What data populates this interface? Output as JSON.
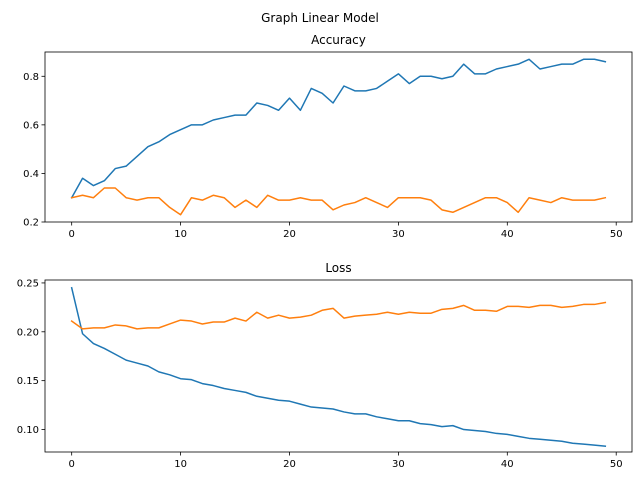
{
  "figure": {
    "suptitle": "Graph Linear Model"
  },
  "colors": {
    "series_0": "#1f77b4",
    "series_1": "#ff7f0e"
  },
  "chart_data": [
    {
      "type": "line",
      "title": "Accuracy",
      "xlabel": "",
      "ylabel": "",
      "xlim": [
        -2.45,
        51.45
      ],
      "ylim": [
        0.2,
        0.9
      ],
      "xticks": [
        0,
        10,
        20,
        30,
        40,
        50
      ],
      "yticks": [
        0.2,
        0.4,
        0.6,
        0.8
      ],
      "ytick_labels": [
        "0.2",
        "0.4",
        "0.6",
        "0.8"
      ],
      "grid": false,
      "x": [
        0,
        1,
        2,
        3,
        4,
        5,
        6,
        7,
        8,
        9,
        10,
        11,
        12,
        13,
        14,
        15,
        16,
        17,
        18,
        19,
        20,
        21,
        22,
        23,
        24,
        25,
        26,
        27,
        28,
        29,
        30,
        31,
        32,
        33,
        34,
        35,
        36,
        37,
        38,
        39,
        40,
        41,
        42,
        43,
        44,
        45,
        46,
        47,
        48,
        49
      ],
      "series": [
        {
          "values": [
            0.3,
            0.38,
            0.35,
            0.37,
            0.42,
            0.43,
            0.47,
            0.51,
            0.53,
            0.56,
            0.58,
            0.6,
            0.6,
            0.62,
            0.63,
            0.64,
            0.64,
            0.69,
            0.68,
            0.66,
            0.71,
            0.66,
            0.75,
            0.73,
            0.69,
            0.76,
            0.74,
            0.74,
            0.75,
            0.78,
            0.81,
            0.77,
            0.8,
            0.8,
            0.79,
            0.8,
            0.85,
            0.81,
            0.81,
            0.83,
            0.84,
            0.85,
            0.87,
            0.83,
            0.84,
            0.85,
            0.85,
            0.87,
            0.87,
            0.86
          ]
        },
        {
          "values": [
            0.3,
            0.31,
            0.3,
            0.34,
            0.34,
            0.3,
            0.29,
            0.3,
            0.3,
            0.26,
            0.23,
            0.3,
            0.29,
            0.31,
            0.3,
            0.26,
            0.29,
            0.26,
            0.31,
            0.29,
            0.29,
            0.3,
            0.29,
            0.29,
            0.25,
            0.27,
            0.28,
            0.3,
            0.28,
            0.26,
            0.3,
            0.3,
            0.3,
            0.29,
            0.25,
            0.24,
            0.26,
            0.28,
            0.3,
            0.3,
            0.28,
            0.24,
            0.3,
            0.29,
            0.28,
            0.3,
            0.29,
            0.29,
            0.29,
            0.3
          ]
        }
      ]
    },
    {
      "type": "line",
      "title": "Loss",
      "xlabel": "",
      "ylabel": "",
      "xlim": [
        -2.45,
        51.45
      ],
      "ylim": [
        0.077,
        0.253
      ],
      "xticks": [
        0,
        10,
        20,
        30,
        40,
        50
      ],
      "yticks": [
        0.1,
        0.15,
        0.2,
        0.25
      ],
      "ytick_labels": [
        "0.10",
        "0.15",
        "0.20",
        "0.25"
      ],
      "grid": false,
      "x": [
        0,
        1,
        2,
        3,
        4,
        5,
        6,
        7,
        8,
        9,
        10,
        11,
        12,
        13,
        14,
        15,
        16,
        17,
        18,
        19,
        20,
        21,
        22,
        23,
        24,
        25,
        26,
        27,
        28,
        29,
        30,
        31,
        32,
        33,
        34,
        35,
        36,
        37,
        38,
        39,
        40,
        41,
        42,
        43,
        44,
        45,
        46,
        47,
        48,
        49
      ],
      "series": [
        {
          "values": [
            0.245,
            0.198,
            0.188,
            0.183,
            0.177,
            0.171,
            0.168,
            0.165,
            0.159,
            0.156,
            0.152,
            0.151,
            0.147,
            0.145,
            0.142,
            0.14,
            0.138,
            0.134,
            0.132,
            0.13,
            0.129,
            0.126,
            0.123,
            0.122,
            0.121,
            0.118,
            0.116,
            0.116,
            0.113,
            0.111,
            0.109,
            0.109,
            0.106,
            0.105,
            0.103,
            0.104,
            0.1,
            0.099,
            0.098,
            0.096,
            0.095,
            0.093,
            0.091,
            0.09,
            0.089,
            0.088,
            0.086,
            0.085,
            0.084,
            0.083
          ]
        },
        {
          "values": [
            0.211,
            0.203,
            0.204,
            0.204,
            0.207,
            0.206,
            0.203,
            0.204,
            0.204,
            0.208,
            0.212,
            0.211,
            0.208,
            0.21,
            0.21,
            0.214,
            0.211,
            0.22,
            0.214,
            0.217,
            0.214,
            0.215,
            0.217,
            0.222,
            0.224,
            0.214,
            0.216,
            0.217,
            0.218,
            0.22,
            0.218,
            0.22,
            0.219,
            0.219,
            0.223,
            0.224,
            0.227,
            0.222,
            0.222,
            0.221,
            0.226,
            0.226,
            0.225,
            0.227,
            0.227,
            0.225,
            0.226,
            0.228,
            0.228,
            0.23
          ]
        }
      ]
    }
  ]
}
